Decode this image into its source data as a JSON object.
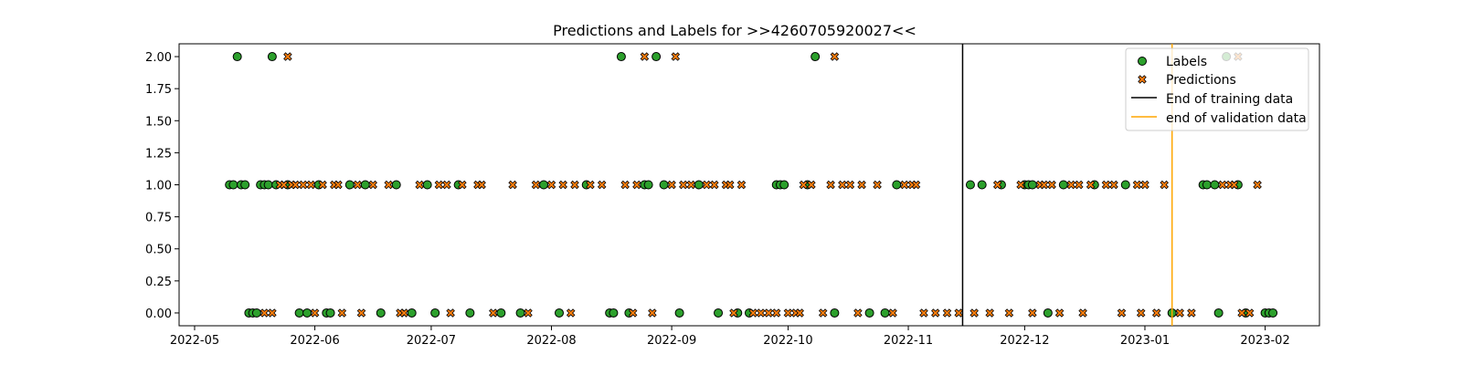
{
  "chart_data": {
    "type": "scatter",
    "title": "Predictions and Labels for >>4260705920027<<",
    "xlabel": "",
    "ylabel": "",
    "xlim": [
      "2022-04-27",
      "2023-02-15"
    ],
    "ylim": [
      -0.1,
      2.1
    ],
    "x_ticks": [
      "2022-05",
      "2022-06",
      "2022-07",
      "2022-08",
      "2022-09",
      "2022-10",
      "2022-11",
      "2022-12",
      "2023-01",
      "2023-02"
    ],
    "y_ticks": [
      "0.00",
      "0.25",
      "0.50",
      "0.75",
      "1.00",
      "1.25",
      "1.50",
      "1.75",
      "2.00"
    ],
    "grid": false,
    "legend_position": "top-right",
    "series": [
      {
        "name": "Labels",
        "marker": "circle",
        "color": "#2ca02c",
        "edge_color": "#000000",
        "points": [
          {
            "x": "2022-05-10",
            "y": 1
          },
          {
            "x": "2022-05-11",
            "y": 1
          },
          {
            "x": "2022-05-12",
            "y": 2
          },
          {
            "x": "2022-05-13",
            "y": 1
          },
          {
            "x": "2022-05-14",
            "y": 1
          },
          {
            "x": "2022-05-15",
            "y": 0
          },
          {
            "x": "2022-05-16",
            "y": 0
          },
          {
            "x": "2022-05-17",
            "y": 0
          },
          {
            "x": "2022-05-18",
            "y": 1
          },
          {
            "x": "2022-05-19",
            "y": 1
          },
          {
            "x": "2022-05-20",
            "y": 1
          },
          {
            "x": "2022-05-21",
            "y": 2
          },
          {
            "x": "2022-05-22",
            "y": 1
          },
          {
            "x": "2022-05-25",
            "y": 1
          },
          {
            "x": "2022-05-28",
            "y": 0
          },
          {
            "x": "2022-05-30",
            "y": 0
          },
          {
            "x": "2022-06-02",
            "y": 1
          },
          {
            "x": "2022-06-04",
            "y": 0
          },
          {
            "x": "2022-06-05",
            "y": 0
          },
          {
            "x": "2022-06-10",
            "y": 1
          },
          {
            "x": "2022-06-14",
            "y": 1
          },
          {
            "x": "2022-06-18",
            "y": 0
          },
          {
            "x": "2022-06-22",
            "y": 1
          },
          {
            "x": "2022-06-26",
            "y": 0
          },
          {
            "x": "2022-06-30",
            "y": 1
          },
          {
            "x": "2022-07-02",
            "y": 0
          },
          {
            "x": "2022-07-08",
            "y": 1
          },
          {
            "x": "2022-07-11",
            "y": 0
          },
          {
            "x": "2022-07-19",
            "y": 0
          },
          {
            "x": "2022-07-24",
            "y": 0
          },
          {
            "x": "2022-07-30",
            "y": 1
          },
          {
            "x": "2022-08-03",
            "y": 0
          },
          {
            "x": "2022-08-10",
            "y": 1
          },
          {
            "x": "2022-08-16",
            "y": 0
          },
          {
            "x": "2022-08-17",
            "y": 0
          },
          {
            "x": "2022-08-19",
            "y": 2
          },
          {
            "x": "2022-08-21",
            "y": 0
          },
          {
            "x": "2022-08-25",
            "y": 1
          },
          {
            "x": "2022-08-26",
            "y": 1
          },
          {
            "x": "2022-08-28",
            "y": 2
          },
          {
            "x": "2022-08-30",
            "y": 1
          },
          {
            "x": "2022-09-03",
            "y": 0
          },
          {
            "x": "2022-09-08",
            "y": 1
          },
          {
            "x": "2022-09-13",
            "y": 0
          },
          {
            "x": "2022-09-18",
            "y": 0
          },
          {
            "x": "2022-09-21",
            "y": 0
          },
          {
            "x": "2022-09-28",
            "y": 1
          },
          {
            "x": "2022-09-29",
            "y": 1
          },
          {
            "x": "2022-09-30",
            "y": 1
          },
          {
            "x": "2022-10-06",
            "y": 1
          },
          {
            "x": "2022-10-08",
            "y": 2
          },
          {
            "x": "2022-10-13",
            "y": 0
          },
          {
            "x": "2022-10-22",
            "y": 0
          },
          {
            "x": "2022-10-26",
            "y": 0
          },
          {
            "x": "2022-10-29",
            "y": 1
          },
          {
            "x": "2022-11-17",
            "y": 1
          },
          {
            "x": "2022-11-20",
            "y": 1
          },
          {
            "x": "2022-11-25",
            "y": 1
          },
          {
            "x": "2022-12-01",
            "y": 1
          },
          {
            "x": "2022-12-02",
            "y": 1
          },
          {
            "x": "2022-12-03",
            "y": 1
          },
          {
            "x": "2022-12-07",
            "y": 0
          },
          {
            "x": "2022-12-11",
            "y": 1
          },
          {
            "x": "2022-12-19",
            "y": 1
          },
          {
            "x": "2022-12-27",
            "y": 1
          },
          {
            "x": "2023-01-08",
            "y": 0
          },
          {
            "x": "2023-01-16",
            "y": 1
          },
          {
            "x": "2023-01-17",
            "y": 1
          },
          {
            "x": "2023-01-19",
            "y": 1
          },
          {
            "x": "2023-01-20",
            "y": 0
          },
          {
            "x": "2023-01-22",
            "y": 2
          },
          {
            "x": "2023-01-25",
            "y": 1
          },
          {
            "x": "2023-01-27",
            "y": 0
          },
          {
            "x": "2023-02-01",
            "y": 0
          },
          {
            "x": "2023-02-02",
            "y": 0
          },
          {
            "x": "2023-02-03",
            "y": 0
          }
        ]
      },
      {
        "name": "Predictions",
        "marker": "x-filled",
        "color": "#ff7f0e",
        "edge_color": "#000000",
        "points": [
          {
            "x": "2022-05-19",
            "y": 0
          },
          {
            "x": "2022-05-21",
            "y": 0
          },
          {
            "x": "2022-05-23",
            "y": 1
          },
          {
            "x": "2022-05-24",
            "y": 1
          },
          {
            "x": "2022-05-25",
            "y": 2
          },
          {
            "x": "2022-05-26",
            "y": 1
          },
          {
            "x": "2022-05-27",
            "y": 1
          },
          {
            "x": "2022-05-29",
            "y": 1
          },
          {
            "x": "2022-05-31",
            "y": 1
          },
          {
            "x": "2022-06-01",
            "y": 0
          },
          {
            "x": "2022-06-03",
            "y": 1
          },
          {
            "x": "2022-06-06",
            "y": 1
          },
          {
            "x": "2022-06-07",
            "y": 1
          },
          {
            "x": "2022-06-08",
            "y": 0
          },
          {
            "x": "2022-06-12",
            "y": 1
          },
          {
            "x": "2022-06-13",
            "y": 0
          },
          {
            "x": "2022-06-16",
            "y": 1
          },
          {
            "x": "2022-06-20",
            "y": 1
          },
          {
            "x": "2022-06-23",
            "y": 0
          },
          {
            "x": "2022-06-24",
            "y": 0
          },
          {
            "x": "2022-06-28",
            "y": 1
          },
          {
            "x": "2022-07-03",
            "y": 1
          },
          {
            "x": "2022-07-05",
            "y": 1
          },
          {
            "x": "2022-07-06",
            "y": 0
          },
          {
            "x": "2022-07-09",
            "y": 1
          },
          {
            "x": "2022-07-13",
            "y": 1
          },
          {
            "x": "2022-07-14",
            "y": 1
          },
          {
            "x": "2022-07-17",
            "y": 0
          },
          {
            "x": "2022-07-22",
            "y": 1
          },
          {
            "x": "2022-07-26",
            "y": 0
          },
          {
            "x": "2022-07-28",
            "y": 1
          },
          {
            "x": "2022-08-01",
            "y": 1
          },
          {
            "x": "2022-08-04",
            "y": 1
          },
          {
            "x": "2022-08-06",
            "y": 0
          },
          {
            "x": "2022-08-07",
            "y": 1
          },
          {
            "x": "2022-08-11",
            "y": 1
          },
          {
            "x": "2022-08-14",
            "y": 1
          },
          {
            "x": "2022-08-20",
            "y": 1
          },
          {
            "x": "2022-08-22",
            "y": 0
          },
          {
            "x": "2022-08-23",
            "y": 1
          },
          {
            "x": "2022-08-25",
            "y": 2
          },
          {
            "x": "2022-08-27",
            "y": 0
          },
          {
            "x": "2022-09-01",
            "y": 1
          },
          {
            "x": "2022-09-02",
            "y": 2
          },
          {
            "x": "2022-09-04",
            "y": 1
          },
          {
            "x": "2022-09-06",
            "y": 1
          },
          {
            "x": "2022-09-10",
            "y": 1
          },
          {
            "x": "2022-09-12",
            "y": 1
          },
          {
            "x": "2022-09-15",
            "y": 1
          },
          {
            "x": "2022-09-16",
            "y": 1
          },
          {
            "x": "2022-09-17",
            "y": 0
          },
          {
            "x": "2022-09-19",
            "y": 1
          },
          {
            "x": "2022-09-22",
            "y": 0
          },
          {
            "x": "2022-09-24",
            "y": 0
          },
          {
            "x": "2022-09-26",
            "y": 0
          },
          {
            "x": "2022-09-28",
            "y": 0
          },
          {
            "x": "2022-10-01",
            "y": 0
          },
          {
            "x": "2022-10-03",
            "y": 0
          },
          {
            "x": "2022-10-04",
            "y": 0
          },
          {
            "x": "2022-10-05",
            "y": 1
          },
          {
            "x": "2022-10-07",
            "y": 1
          },
          {
            "x": "2022-10-10",
            "y": 0
          },
          {
            "x": "2022-10-12",
            "y": 1
          },
          {
            "x": "2022-10-13",
            "y": 2
          },
          {
            "x": "2022-10-15",
            "y": 1
          },
          {
            "x": "2022-10-17",
            "y": 1
          },
          {
            "x": "2022-10-19",
            "y": 0
          },
          {
            "x": "2022-10-20",
            "y": 1
          },
          {
            "x": "2022-10-24",
            "y": 1
          },
          {
            "x": "2022-10-28",
            "y": 0
          },
          {
            "x": "2022-10-31",
            "y": 1
          },
          {
            "x": "2022-11-02",
            "y": 1
          },
          {
            "x": "2022-11-03",
            "y": 1
          },
          {
            "x": "2022-11-05",
            "y": 0
          },
          {
            "x": "2022-11-08",
            "y": 0
          },
          {
            "x": "2022-11-11",
            "y": 0
          },
          {
            "x": "2022-11-14",
            "y": 0
          },
          {
            "x": "2022-11-18",
            "y": 0
          },
          {
            "x": "2022-11-22",
            "y": 0
          },
          {
            "x": "2022-11-24",
            "y": 1
          },
          {
            "x": "2022-11-27",
            "y": 0
          },
          {
            "x": "2022-11-30",
            "y": 1
          },
          {
            "x": "2022-12-03",
            "y": 0
          },
          {
            "x": "2022-12-05",
            "y": 1
          },
          {
            "x": "2022-12-06",
            "y": 1
          },
          {
            "x": "2022-12-08",
            "y": 1
          },
          {
            "x": "2022-12-10",
            "y": 0
          },
          {
            "x": "2022-12-13",
            "y": 1
          },
          {
            "x": "2022-12-15",
            "y": 1
          },
          {
            "x": "2022-12-16",
            "y": 0
          },
          {
            "x": "2022-12-18",
            "y": 1
          },
          {
            "x": "2022-12-22",
            "y": 1
          },
          {
            "x": "2022-12-24",
            "y": 1
          },
          {
            "x": "2022-12-26",
            "y": 0
          },
          {
            "x": "2022-12-30",
            "y": 1
          },
          {
            "x": "2022-12-31",
            "y": 0
          },
          {
            "x": "2023-01-01",
            "y": 1
          },
          {
            "x": "2023-01-04",
            "y": 0
          },
          {
            "x": "2023-01-06",
            "y": 1
          },
          {
            "x": "2023-01-10",
            "y": 0
          },
          {
            "x": "2023-01-13",
            "y": 0
          },
          {
            "x": "2023-01-21",
            "y": 1
          },
          {
            "x": "2023-01-23",
            "y": 1
          },
          {
            "x": "2023-01-24",
            "y": 1
          },
          {
            "x": "2023-01-25",
            "y": 2
          },
          {
            "x": "2023-01-26",
            "y": 0
          },
          {
            "x": "2023-01-28",
            "y": 0
          },
          {
            "x": "2023-01-30",
            "y": 1
          }
        ]
      }
    ],
    "vlines": [
      {
        "name": "End of training data",
        "x": "2022-11-15",
        "color": "#000000"
      },
      {
        "name": "end of validation data",
        "x": "2023-01-08",
        "color": "#ffa500"
      }
    ]
  }
}
